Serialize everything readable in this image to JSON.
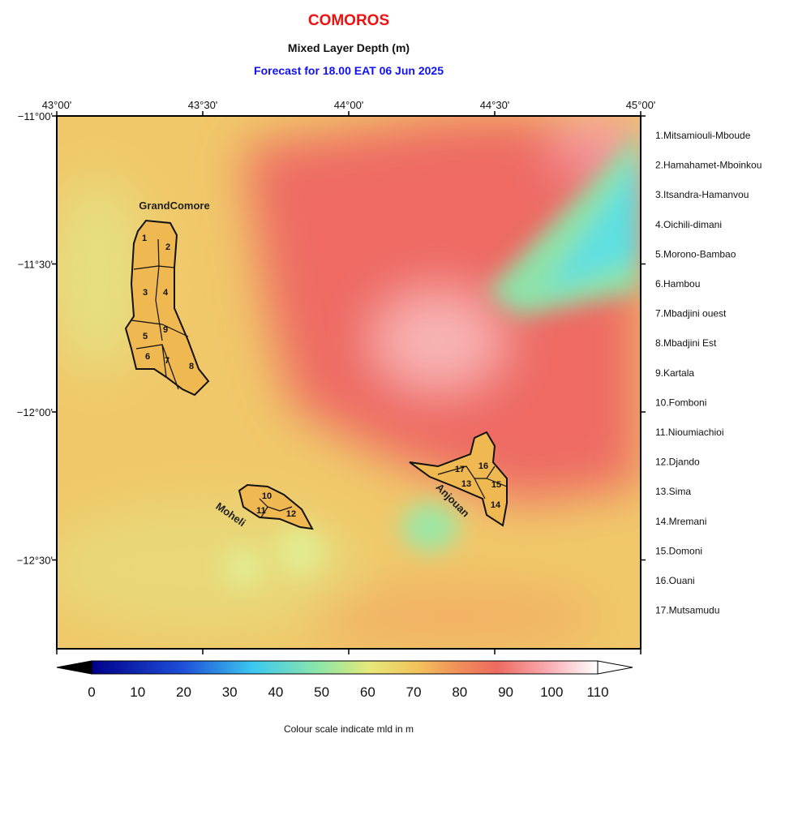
{
  "header": {
    "title": "COMOROS",
    "subtitle": "Mixed Layer Depth (m)",
    "forecast": "Forecast for  18.00 EAT 06 Jun 2025"
  },
  "map": {
    "xlim": [
      43,
      45
    ],
    "ylim": [
      -12.8,
      -11
    ],
    "xticks": [
      {
        "value": 43,
        "label": "43°00'"
      },
      {
        "value": 43.5,
        "label": "43°30'"
      },
      {
        "value": 44,
        "label": "44°00'"
      },
      {
        "value": 44.5,
        "label": "44°30'"
      },
      {
        "value": 45,
        "label": "45°00'"
      }
    ],
    "yticks": [
      {
        "value": -11,
        "label": "−11°00'"
      },
      {
        "value": -11.5,
        "label": "−11°30'"
      },
      {
        "value": -12,
        "label": "−12°00'"
      },
      {
        "value": -12.5,
        "label": "−12°30'"
      }
    ],
    "islands": [
      "GrandComore",
      "Moheli",
      "Anjouan"
    ],
    "region_numbers": [
      "1",
      "2",
      "3",
      "4",
      "5",
      "6",
      "7",
      "8",
      "9",
      "10",
      "11",
      "12",
      "13",
      "14",
      "15",
      "16",
      "17"
    ]
  },
  "legend": {
    "items": [
      "1.Mitsamiouli-Mboude",
      "2.Hamahamet-Mboinkou",
      "3.Itsandra-Hamanvou",
      "4.Oichili-dimani",
      "5.Morono-Bambao",
      "6.Hambou",
      "7.Mbadjini ouest",
      "8.Mbadjini Est",
      "9.Kartala",
      "10.Fomboni",
      "11.Nioumiachioi",
      "12.Djando",
      "13.Sima",
      "14.Mremani",
      "15.Domoni",
      "16.Ouani",
      "17.Mutsamudu"
    ]
  },
  "colorbar": {
    "range": [
      0,
      110
    ],
    "ticks": [
      0,
      10,
      20,
      30,
      40,
      50,
      60,
      70,
      80,
      90,
      100,
      110
    ],
    "caption": "Colour scale indicate mld in m"
  }
}
